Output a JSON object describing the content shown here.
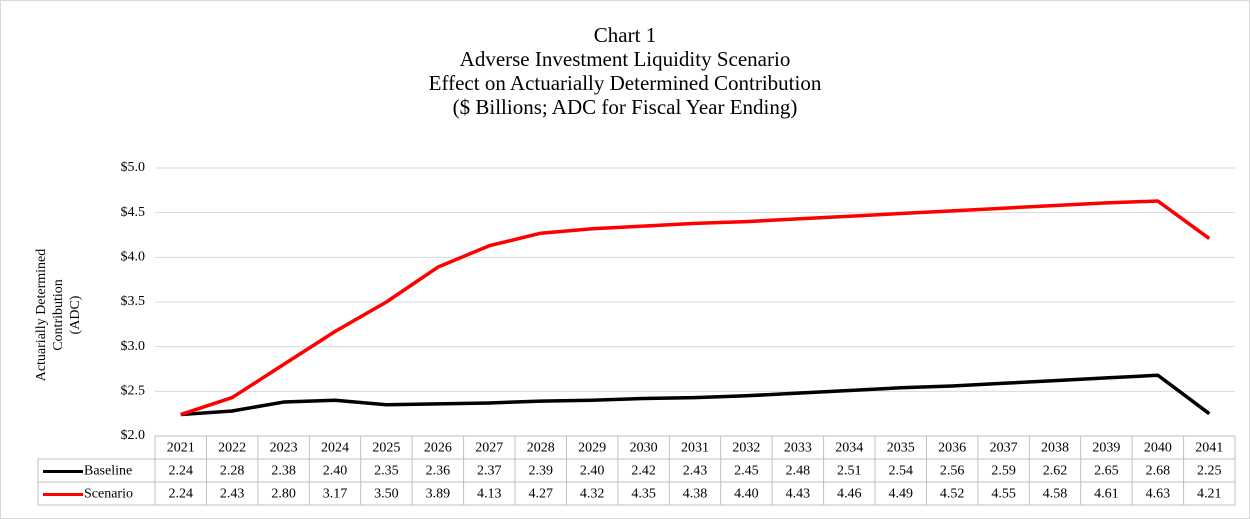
{
  "chart_data": {
    "type": "line",
    "title": [
      "Chart 1",
      "Adverse Investment Liquidity Scenario",
      "Effect on Actuarially Determined Contribution",
      "($ Billions; ADC for Fiscal Year Ending)"
    ],
    "y_label": [
      "Actuarially Determined",
      "Contribution",
      "(ADC)"
    ],
    "categories": [
      "2021",
      "2022",
      "2023",
      "2024",
      "2025",
      "2026",
      "2027",
      "2028",
      "2029",
      "2030",
      "2031",
      "2032",
      "2033",
      "2034",
      "2035",
      "2036",
      "2037",
      "2038",
      "2039",
      "2040",
      "2041"
    ],
    "series": [
      {
        "name": "Baseline",
        "color": "#000000",
        "values": [
          2.24,
          2.28,
          2.38,
          2.4,
          2.35,
          2.36,
          2.37,
          2.39,
          2.4,
          2.42,
          2.43,
          2.45,
          2.48,
          2.51,
          2.54,
          2.56,
          2.59,
          2.62,
          2.65,
          2.68,
          2.25
        ],
        "value_labels": [
          "2.24",
          "2.28",
          "2.38",
          "2.40",
          "2.35",
          "2.36",
          "2.37",
          "2.39",
          "2.40",
          "2.42",
          "2.43",
          "2.45",
          "2.48",
          "2.51",
          "2.54",
          "2.56",
          "2.59",
          "2.62",
          "2.65",
          "2.68",
          "2.25"
        ]
      },
      {
        "name": "Scenario",
        "color": "#ff0000",
        "values": [
          2.24,
          2.43,
          2.8,
          3.17,
          3.5,
          3.89,
          4.13,
          4.27,
          4.32,
          4.35,
          4.38,
          4.4,
          4.43,
          4.46,
          4.49,
          4.52,
          4.55,
          4.58,
          4.61,
          4.63,
          4.21
        ],
        "value_labels": [
          "2.24",
          "2.43",
          "2.80",
          "3.17",
          "3.50",
          "3.89",
          "4.13",
          "4.27",
          "4.32",
          "4.35",
          "4.38",
          "4.40",
          "4.43",
          "4.46",
          "4.49",
          "4.52",
          "4.55",
          "4.58",
          "4.61",
          "4.63",
          "4.21"
        ]
      }
    ],
    "ylim": [
      2,
      5
    ],
    "yticks": [
      {
        "value": 2,
        "label": "$2.0"
      },
      {
        "value": 2.5,
        "label": "$2.5"
      },
      {
        "value": 3,
        "label": "$3.0"
      },
      {
        "value": 3.5,
        "label": "$3.5"
      },
      {
        "value": 4,
        "label": "$4.0"
      },
      {
        "value": 4.5,
        "label": "$4.5"
      },
      {
        "value": 5,
        "label": "$5.0"
      }
    ],
    "grid": true
  }
}
